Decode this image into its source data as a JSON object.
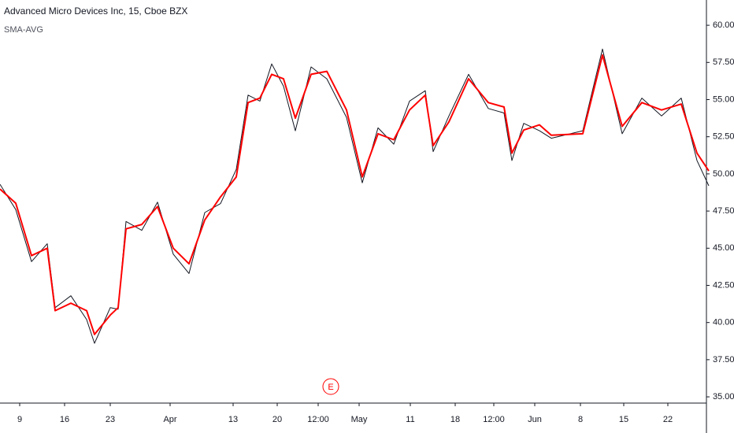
{
  "chart_data": {
    "type": "line",
    "title": "Advanced Micro Devices Inc, 15, Cboe BZX",
    "x": [
      0,
      2,
      4,
      6,
      7,
      9,
      11,
      12,
      14,
      15,
      16,
      18,
      20,
      22,
      24,
      26,
      28,
      30,
      31.5,
      33,
      34.5,
      36,
      37.5,
      39.5,
      41.5,
      44,
      46,
      48,
      50,
      52,
      54,
      55,
      57,
      59.5,
      62,
      64,
      65,
      66.5,
      68.5,
      70,
      74,
      76.5,
      79,
      81.5,
      84,
      86.5,
      88.5,
      90
    ],
    "series": [
      {
        "color": "#131722",
        "values": [
          49.3,
          47.6,
          44.1,
          45.3,
          41.0,
          41.8,
          40.2,
          38.6,
          41.0,
          40.9,
          46.8,
          46.2,
          48.1,
          44.6,
          43.3,
          47.4,
          48.0,
          50.3,
          55.3,
          54.9,
          57.4,
          55.9,
          52.9,
          57.2,
          56.4,
          53.8,
          49.4,
          53.1,
          52.0,
          54.9,
          55.6,
          51.5,
          53.9,
          56.7,
          54.4,
          54.1,
          50.9,
          53.4,
          52.9,
          52.4,
          52.9,
          58.4,
          52.7,
          55.1,
          53.9,
          55.1,
          50.9,
          49.2
        ]
      },
      {
        "name": "SMA-AVG",
        "color": "#ff0000",
        "values": [
          48.98,
          48.03,
          44.5,
          45.0,
          40.8,
          41.3,
          40.8,
          39.2,
          40.5,
          41.0,
          46.3,
          46.6,
          47.8,
          45.0,
          43.95,
          46.9,
          48.45,
          49.8,
          54.8,
          55.1,
          56.7,
          56.4,
          53.75,
          56.7,
          56.9,
          54.3,
          49.8,
          52.7,
          52.3,
          54.3,
          55.3,
          51.9,
          53.5,
          56.4,
          54.8,
          54.5,
          51.4,
          52.95,
          53.3,
          52.6,
          52.7,
          58.0,
          53.2,
          54.8,
          54.3,
          54.7,
          51.4,
          50.2
        ]
      }
    ],
    "xlim": [
      0,
      90.3
    ],
    "xticks": [
      {
        "value": 2.5,
        "label": "9"
      },
      {
        "value": 8.2,
        "label": "16"
      },
      {
        "value": 14,
        "label": "23"
      },
      {
        "value": 21.6,
        "label": "Apr"
      },
      {
        "value": 29.6,
        "label": "13"
      },
      {
        "value": 35.2,
        "label": "20"
      },
      {
        "value": 40.4,
        "label": "12:00"
      },
      {
        "value": 45.6,
        "label": "May"
      },
      {
        "value": 52.1,
        "label": "11"
      },
      {
        "value": 57.8,
        "label": "18"
      },
      {
        "value": 62.7,
        "label": "12:00"
      },
      {
        "value": 67.9,
        "label": "Jun"
      },
      {
        "value": 73.7,
        "label": "8"
      },
      {
        "value": 79.2,
        "label": "15"
      },
      {
        "value": 84.8,
        "label": "22"
      }
    ],
    "ylim": [
      34.58,
      61.7
    ],
    "yticks": [
      {
        "value": 35,
        "label": "35.00"
      },
      {
        "value": 37.5,
        "label": "37.50"
      },
      {
        "value": 40,
        "label": "40.00"
      },
      {
        "value": 42.5,
        "label": "42.50"
      },
      {
        "value": 45,
        "label": "45.00"
      },
      {
        "value": 47.5,
        "label": "47.50"
      },
      {
        "value": 50,
        "label": "50.00"
      },
      {
        "value": 52.5,
        "label": "52.50"
      },
      {
        "value": 55,
        "label": "55.00"
      },
      {
        "value": 57.5,
        "label": "57.50"
      },
      {
        "value": 60,
        "label": "60.00"
      }
    ],
    "annotations": [
      {
        "text": "E",
        "x": 42
      }
    ]
  }
}
